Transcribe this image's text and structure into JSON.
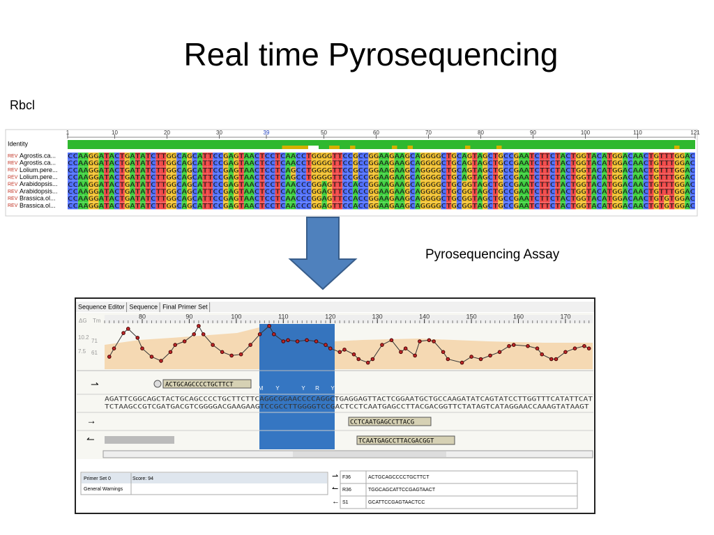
{
  "slide": {
    "title": "Real time Pyrosequencing",
    "section_label": "Rbcl",
    "assay_label": "Pyrosequencing Assay"
  },
  "alignment": {
    "identity_label": "Identity",
    "ruler": [
      1,
      10,
      20,
      30,
      39,
      50,
      60,
      70,
      80,
      90,
      100,
      110,
      121
    ],
    "rows": [
      {
        "tag": "REV",
        "name": "Agrostis.ca...",
        "sequence": "CCAAGGATACTGATATCTTGGCAGCATTCCGAGTAACTCCTCAACCTGGGGTTCCGCCGGAAGAAGCAGGGGCTGCAGTAGCTGCCGAATCTTCTACTGGTACATGGACAACTGTTTGGAC"
      },
      {
        "tag": "REV",
        "name": "Agrostis.ca...",
        "sequence": "CCAAGGATACTGATATCTTGGCAGCATTCCGAGTAACTCCTCAACCTGGGGTTCCGCCGGAAGAAGCAGGGGCTGCAGTAGCTGCCGAATCTTCTACTGGTACATGGACAACTGTTTGGAC"
      },
      {
        "tag": "REV",
        "name": "Lolium.pere...",
        "sequence": "CCAAGGATACTGATATCTTGGCAGCATTCCGAGTAACTCCTCAGCCTGGGGTTCCGCCGGAAGAAGCAGGGGCTGCAGTAGCTGCCGAATCTTCTACTGGTACATGGACAACTGTTTGGAC"
      },
      {
        "tag": "REV",
        "name": "Lolium.pere...",
        "sequence": "CCAAGGATACTGATATCTTGGCAGCATTCCGAGTAACTCCTCAGCCTGGGGTTCCGCCGGAAGAAGCAGGGGCTGCAGTAGCTGCCGAATCTTCTACTGGTACATGGACAACTGTTTGGAC"
      },
      {
        "tag": "REV",
        "name": "Arabidopsis...",
        "sequence": "CCAAGGATACTGATATCTTGGCAGCATTCCGAGTAACTCCTCAACCCGGAGTTCCACCGGAAGAAGCAGGGGCTGCGGTAGCTGCCGAATCTTCTACTGGTACATGGACAACTGTTTGGAC"
      },
      {
        "tag": "REV",
        "name": "Arabidopsis...",
        "sequence": "CCAAGGATACTGATATCTTGGCAGCATTCCGAGTAACTCCTCAACCCGGAGTTCCACCGGAAGAAGCAGGGGCTGCGGTAGCTGCCGAATCTTCTACTGGTACATGGACAACTGTTTGGAC"
      },
      {
        "tag": "REV",
        "name": "Brassica.ol...",
        "sequence": "CCAAGGATACTGATATCTTGGCAGCATTCCGAGTAACTCCTCAACCCGGAGTTCCACCGGAAGAAGCAGGGGCTGCGGTAGCTGCCGAATCTTCTACTGGTACATGGACAACTGTGTGGAC"
      },
      {
        "tag": "REV",
        "name": "Brassica.ol...",
        "sequence": "CCAAGGATACTGATATCTTGGCAGCATTCCGAGTAACTCCTCAACCCGGAGTTCCACCGGAAGAAGCAGGGGCTGCGGTAGCTGCCGAATCTTCTACTGGTACATGGACAACTGTGTGGAC"
      }
    ]
  },
  "editor": {
    "tabs": [
      "Sequence Editor",
      "Sequence",
      "Final Primer Set"
    ],
    "dg_label": "ΔG",
    "tm_label": "Tm",
    "y_labels": [
      "10.2",
      "71",
      "7.5",
      "61"
    ],
    "ruler": [
      80,
      90,
      100,
      110,
      120,
      130,
      140,
      150,
      160,
      170
    ],
    "tm_curve": {
      "x": [
        73,
        74,
        76,
        77,
        79,
        80,
        82,
        84,
        86,
        87,
        89,
        91,
        92,
        93,
        95,
        97,
        99,
        101,
        103,
        105,
        107,
        108,
        110,
        111,
        113,
        115,
        117,
        119,
        120,
        122,
        123,
        125,
        126,
        128,
        129,
        131,
        133,
        135,
        136,
        138,
        139,
        141,
        142,
        144,
        145,
        148,
        150,
        152,
        154,
        156,
        158,
        159,
        162,
        164,
        165,
        167,
        168,
        170,
        172,
        174,
        175
      ],
      "values": [
        58,
        65,
        78,
        81.6,
        74,
        65,
        58,
        54.5,
        62,
        68,
        71,
        77,
        84,
        77,
        68,
        62,
        59,
        60,
        68,
        77,
        84,
        77,
        71,
        72,
        71,
        72,
        71,
        68,
        65,
        62,
        64,
        60,
        56,
        53,
        56,
        68,
        72,
        62,
        65,
        59,
        71,
        72,
        71,
        62,
        56,
        53,
        58,
        56,
        59,
        62,
        67,
        68,
        67,
        65,
        60,
        56,
        56,
        62,
        65,
        67,
        65
      ]
    },
    "ambiguity_codes": [
      "M",
      "Y",
      "Y",
      "R",
      "Y"
    ],
    "forward_sequence": "AGATTCGGCAGCTACTGCAGCCCCTGCTTCTTCAGGCGGAACCCCAGGCTGAGGAGTTACTCGGAATGCTGCCAAGATATCAGTATCCTTGGTTTCATATTCAT",
    "reverse_sequence": "TCTAAGCCGTCGATGACGTCGGGGACGAAGAAGTCCGCCTTGGGGTCCGACTCCTCAATGAGCCTTACGACGGTTCTATAGTCATAGGAACCAAAGTATAAGT",
    "primers": [
      "ACTGCAGCCCCTGCTTCT",
      "CCTCAATGAGCCTTACG",
      "TCAATGAGCCTTACGACGGT"
    ]
  },
  "assay": {
    "primer_set": "Primer Set 0",
    "score": "Score: 94",
    "warnings_label": "General Warnings",
    "oligos": [
      {
        "name": "F36",
        "sequence": "ACTGCAGCCCCTGCTTCT"
      },
      {
        "name": "R36",
        "sequence": "TGGCAGCATTCCGAGTAACT"
      },
      {
        "name": "S1",
        "sequence": "GCATTCCGAGTAACTCC"
      }
    ]
  }
}
